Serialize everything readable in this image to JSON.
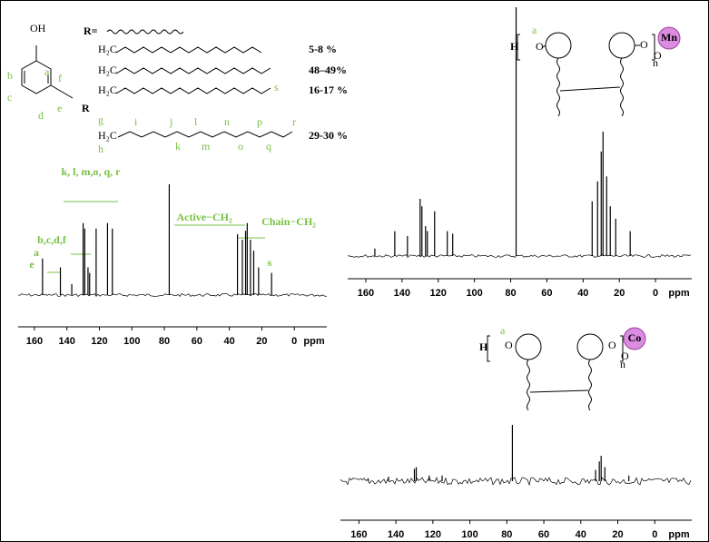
{
  "chart_data": [
    {
      "type": "spectrum",
      "xlabel": "ppm",
      "xlim": [
        170,
        -20
      ],
      "ylim": [
        0,
        100
      ],
      "xticks": [
        160,
        140,
        120,
        100,
        80,
        60,
        40,
        20,
        0
      ],
      "x": [
        155,
        144,
        137,
        130,
        129,
        127,
        126,
        122,
        115,
        112,
        77,
        35,
        32,
        30,
        29,
        27,
        25,
        22,
        14
      ],
      "values": [
        33,
        25,
        10,
        65,
        60,
        25,
        20,
        60,
        65,
        60,
        100,
        55,
        50,
        58,
        65,
        50,
        40,
        25,
        20
      ],
      "annotations": [
        "a",
        "b,c,d,f",
        "e",
        "k, l, m,o, q, r",
        "Active−CH₂",
        "Chain−CH₂",
        "s"
      ]
    },
    {
      "type": "spectrum",
      "xlabel": "ppm",
      "xlim": [
        170,
        -20
      ],
      "ylim": [
        0,
        100
      ],
      "xticks": [
        160,
        140,
        120,
        100,
        80,
        60,
        40,
        20,
        0
      ],
      "x": [
        155,
        144,
        137,
        130,
        129,
        127,
        126,
        122,
        115,
        112,
        77,
        35,
        32,
        30,
        29,
        27,
        25,
        22,
        14
      ],
      "values": [
        3,
        10,
        8,
        23,
        20,
        12,
        10,
        18,
        10,
        9,
        100,
        22,
        30,
        42,
        50,
        32,
        20,
        15,
        10
      ]
    },
    {
      "type": "spectrum",
      "xlabel": "ppm",
      "xlim": [
        170,
        -20
      ],
      "ylim": [
        0,
        100
      ],
      "xticks": [
        160,
        140,
        120,
        100,
        80,
        60,
        40,
        20,
        0
      ],
      "x": [
        155,
        144,
        130,
        129,
        122,
        115,
        77,
        32,
        30,
        29,
        27,
        14
      ],
      "values": [
        5,
        8,
        22,
        25,
        10,
        10,
        100,
        20,
        35,
        45,
        25,
        10
      ]
    }
  ],
  "structures": {
    "monomer": {
      "oh": "OH",
      "atoms": [
        "a",
        "b",
        "c",
        "d",
        "e",
        "f"
      ],
      "r": "R"
    },
    "substituent": {
      "label": "R=",
      "chains": [
        {
          "head": "H₂C",
          "percent": "5-8 %"
        },
        {
          "head": "H₂C",
          "percent": "48–49%"
        },
        {
          "head": "H₂C",
          "percent": "16-17 %"
        },
        {
          "head": "H₂C",
          "percent": "29-30 %"
        }
      ],
      "letters": [
        "g",
        "h",
        "i",
        "j",
        "k",
        "l",
        "m",
        "n",
        "o",
        "p",
        "q",
        "r",
        "s"
      ]
    },
    "polymer_mn": {
      "h": "H",
      "atom": "a",
      "o1": "O",
      "o2": "O",
      "metal": "Mn",
      "o3": "O",
      "n": "n"
    },
    "polymer_co": {
      "h": "H",
      "atom": "a",
      "o1": "O",
      "o2": "O",
      "metal": "Co",
      "o3": "O",
      "n": "n"
    }
  }
}
